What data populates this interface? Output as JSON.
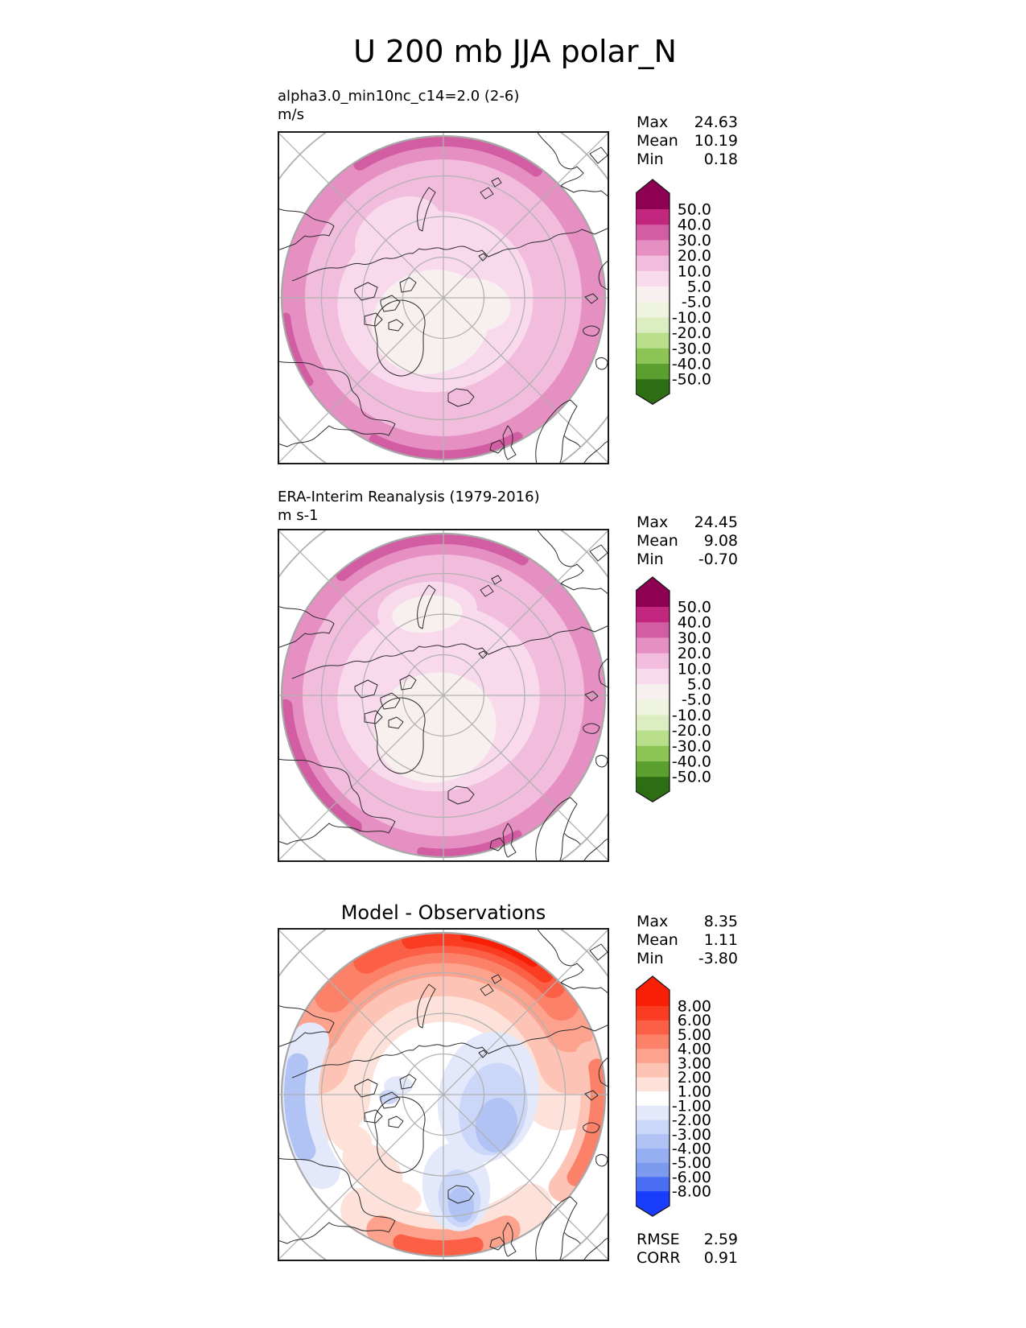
{
  "figure": {
    "title": "U 200 mb JJA polar_N"
  },
  "chart_data": [
    {
      "type": "heatmap",
      "panel": "model",
      "projection": "north_polar_stereographic",
      "subtitle": "alpha3.0_min10nc_c14=2.0 (2-6)",
      "units": "m/s",
      "stats": {
        "labels": [
          "Max",
          "Mean",
          "Min"
        ],
        "values": [
          "24.63",
          "10.19",
          "0.18"
        ]
      },
      "colorbar": {
        "levels": [
          "50.0",
          "40.0",
          "30.0",
          "20.0",
          "10.0",
          "5.0",
          "-5.0",
          "-10.0",
          "-20.0",
          "-30.0",
          "-40.0",
          "-50.0"
        ],
        "band_colors": [
          "#c2267f",
          "#d35da2",
          "#e58fc3",
          "#f2bcdd",
          "#f9d9ec",
          "#f7f0ef",
          "#eef4df",
          "#dcedc1",
          "#b9df8c",
          "#8cc455",
          "#5ba02e"
        ],
        "over_color": "#8e0152",
        "under_color": "#2d6e14"
      }
    },
    {
      "type": "heatmap",
      "panel": "observations",
      "projection": "north_polar_stereographic",
      "subtitle": "ERA-Interim Reanalysis (1979-2016)",
      "units": "m s-1",
      "stats": {
        "labels": [
          "Max",
          "Mean",
          "Min"
        ],
        "values": [
          "24.45",
          "9.08",
          "-0.70"
        ]
      },
      "colorbar": {
        "levels": [
          "50.0",
          "40.0",
          "30.0",
          "20.0",
          "10.0",
          "5.0",
          "-5.0",
          "-10.0",
          "-20.0",
          "-30.0",
          "-40.0",
          "-50.0"
        ],
        "band_colors": [
          "#c2267f",
          "#d35da2",
          "#e58fc3",
          "#f2bcdd",
          "#f9d9ec",
          "#f7f0ef",
          "#eef4df",
          "#dcedc1",
          "#b9df8c",
          "#8cc455",
          "#5ba02e"
        ],
        "over_color": "#8e0152",
        "under_color": "#2d6e14"
      }
    },
    {
      "type": "heatmap",
      "panel": "difference",
      "projection": "north_polar_stereographic",
      "title": "Model - Observations",
      "stats": {
        "labels": [
          "Max",
          "Mean",
          "Min"
        ],
        "values": [
          "8.35",
          "1.11",
          "-3.80"
        ]
      },
      "colorbar": {
        "levels": [
          "8.00",
          "6.00",
          "5.00",
          "4.00",
          "3.00",
          "2.00",
          "1.00",
          "-1.00",
          "-2.00",
          "-3.00",
          "-4.00",
          "-5.00",
          "-6.00",
          "-8.00"
        ],
        "band_colors": [
          "#fa3c23",
          "#fb6046",
          "#fc8169",
          "#fca28d",
          "#fdc3b4",
          "#fee2da",
          "#ffffff",
          "#e3e9fb",
          "#cbd7f8",
          "#b1c3f5",
          "#96aff2",
          "#7c9bef",
          "#4a6ef3"
        ],
        "over_color": "#f91f06",
        "under_color": "#1a3cfc"
      },
      "metrics": {
        "labels": [
          "RMSE",
          "CORR"
        ],
        "values": [
          "2.59",
          "0.91"
        ]
      }
    }
  ]
}
